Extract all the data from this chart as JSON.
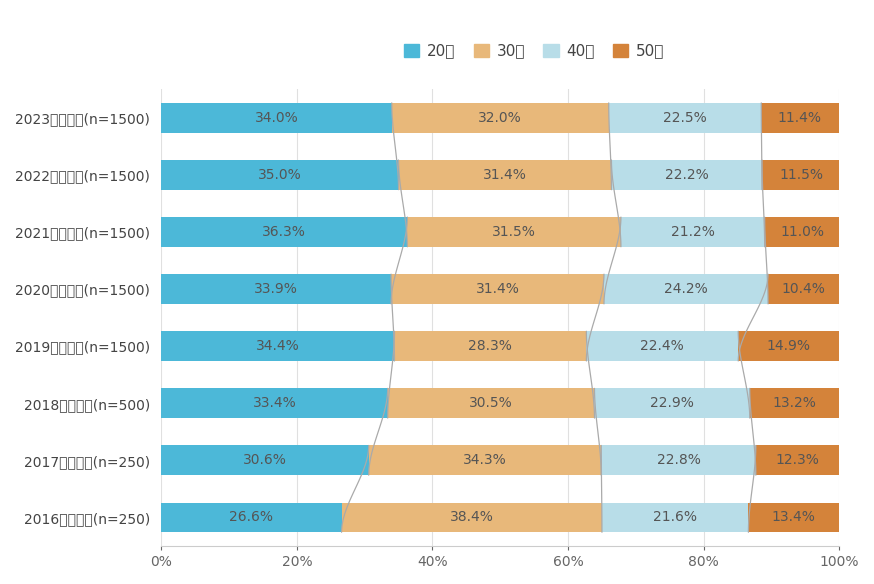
{
  "categories": [
    "2023年本調査(n=1500)",
    "2022年本調査(n=1500)",
    "2021年本調査(n=1500)",
    "2020年本調査(n=1500)",
    "2019年本調査(n=1500)",
    "2018年本調査(n=500)",
    "2017年本調査(n=250)",
    "2016年本調査(n=250)"
  ],
  "series": {
    "20代": [
      34.0,
      35.0,
      36.3,
      33.9,
      34.4,
      33.4,
      30.6,
      26.6
    ],
    "30代": [
      32.0,
      31.4,
      31.5,
      31.4,
      28.3,
      30.5,
      34.3,
      38.4
    ],
    "40代": [
      22.5,
      22.2,
      21.2,
      24.2,
      22.4,
      22.9,
      22.8,
      21.6
    ],
    "50代": [
      11.4,
      11.5,
      11.0,
      10.4,
      14.9,
      13.2,
      12.3,
      13.4
    ]
  },
  "colors": {
    "20代": "#4CB8D8",
    "30代": "#E8B87A",
    "40代": "#B8DDE8",
    "50代": "#D4833A"
  },
  "legend_order": [
    "20代",
    "30代",
    "40代",
    "50代"
  ],
  "background_color": "#FFFFFF",
  "bar_height": 0.52,
  "xlim": [
    0,
    100
  ],
  "xticks": [
    0,
    20,
    40,
    60,
    80,
    100
  ],
  "xtick_labels": [
    "0%",
    "20%",
    "40%",
    "60%",
    "80%",
    "100%"
  ],
  "tick_fontsize": 10,
  "legend_fontsize": 11,
  "value_fontsize": 10,
  "label_color": "#555555"
}
